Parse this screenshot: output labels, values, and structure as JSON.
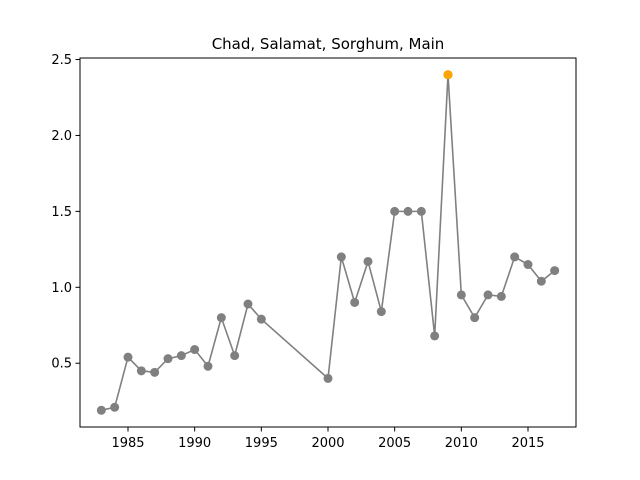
{
  "chart_data": {
    "type": "line",
    "title": "Chad, Salamat, Sorghum, Main",
    "xlabel": "",
    "ylabel": "",
    "xlim": [
      1981.4,
      2018.6
    ],
    "ylim": [
      0.08,
      2.51
    ],
    "xticks": [
      1985,
      1990,
      1995,
      2000,
      2005,
      2010,
      2015
    ],
    "yticks": [
      0.5,
      1.0,
      1.5,
      2.0,
      2.5
    ],
    "grid": false,
    "legend": "none",
    "colors": {
      "line": "#808080",
      "marker": "#808080",
      "highlight": "#ffa500"
    },
    "series": [
      {
        "x": [
          1983,
          1984,
          1985,
          1986,
          1987,
          1988,
          1989,
          1990,
          1991,
          1992,
          1993,
          1994,
          1995,
          2000,
          2001,
          2002,
          2003,
          2004,
          2005,
          2006,
          2007,
          2008,
          2009,
          2010,
          2011,
          2012,
          2013,
          2014,
          2015,
          2016,
          2017
        ],
        "y": [
          0.19,
          0.21,
          0.54,
          0.45,
          0.44,
          0.53,
          0.55,
          0.59,
          0.48,
          0.8,
          0.55,
          0.89,
          0.79,
          0.4,
          1.2,
          0.9,
          1.17,
          0.84,
          1.5,
          1.5,
          1.5,
          0.68,
          2.4,
          0.95,
          0.8,
          0.95,
          0.94,
          1.2,
          1.15,
          1.04,
          1.11
        ]
      }
    ],
    "highlight": {
      "x": 2009,
      "y": 2.4
    }
  }
}
